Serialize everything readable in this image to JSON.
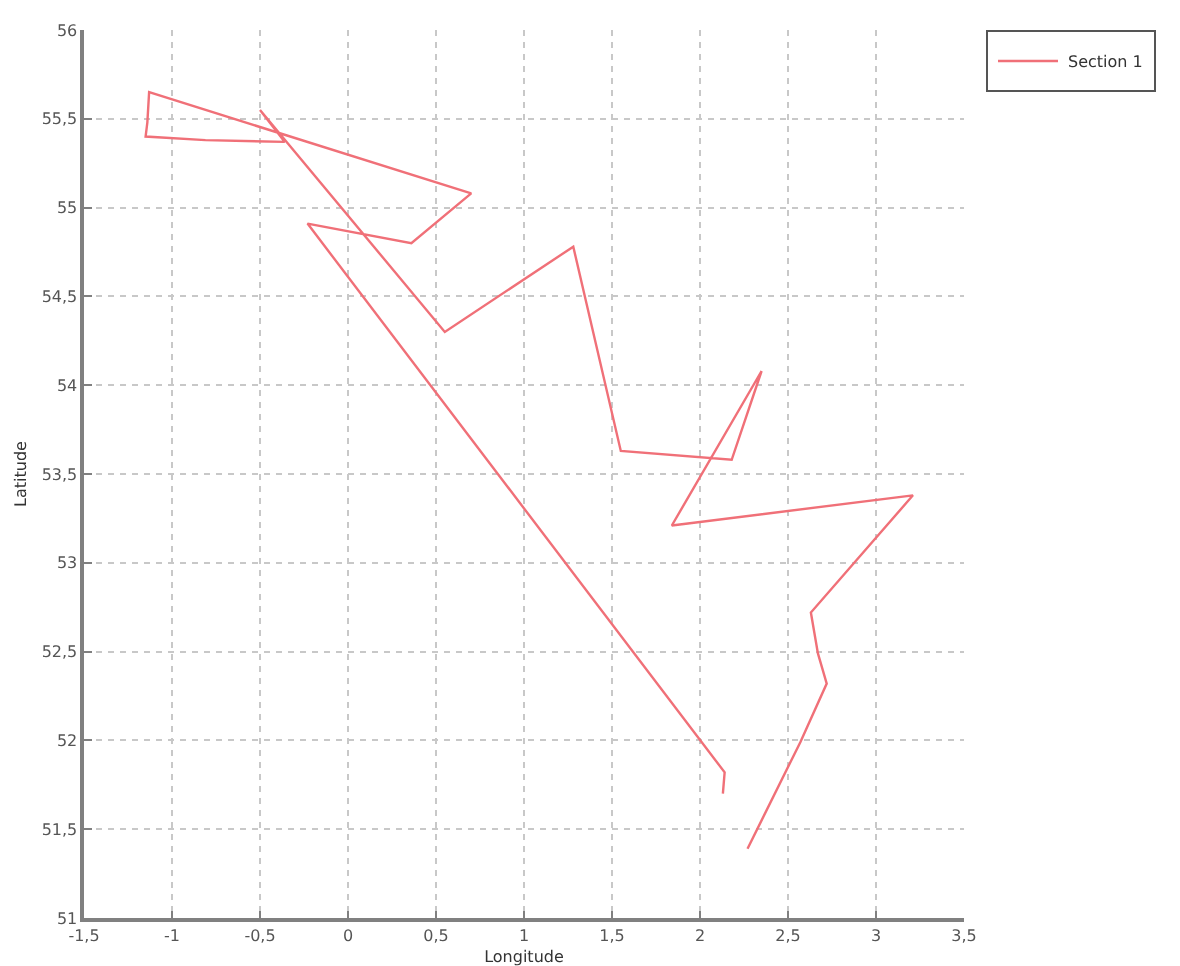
{
  "chart_data": {
    "type": "line",
    "xlabel": "Longitude",
    "ylabel": "Latitude",
    "series": [
      {
        "name": "Section 1",
        "color": "#f07078",
        "x": [
          2.27,
          2.57,
          2.72,
          2.67,
          2.63,
          3.21,
          1.84,
          2.35,
          2.18,
          1.55,
          1.28,
          0.55,
          -0.5,
          -0.36,
          -0.81,
          -1.15,
          -1.14,
          -1.13,
          0.7,
          0.36,
          -0.23,
          2.14,
          2.13
        ],
        "values": [
          51.39,
          51.99,
          52.32,
          52.49,
          52.72,
          53.38,
          53.21,
          54.08,
          53.58,
          53.63,
          54.78,
          54.3,
          55.55,
          55.37,
          55.38,
          55.4,
          55.48,
          55.65,
          55.08,
          54.8,
          54.91,
          51.82,
          51.7
        ]
      }
    ],
    "xlim": [
      -1.5,
      3.5
    ],
    "ylim": [
      51,
      56
    ],
    "xticks": [
      {
        "value": -1.5,
        "label": "-1,5"
      },
      -1,
      {
        "value": -0.5,
        "label": "-0,5"
      },
      0,
      {
        "value": 0.5,
        "label": "0,5"
      },
      1,
      {
        "value": 1.5,
        "label": "1,5"
      },
      2,
      {
        "value": 2.5,
        "label": "2,5"
      },
      3,
      {
        "value": 3.5,
        "label": "3,5"
      }
    ],
    "yticks": [
      51,
      {
        "value": 51.5,
        "label": "51,5"
      },
      52,
      {
        "value": 52.5,
        "label": "52,5"
      },
      53,
      {
        "value": 53.5,
        "label": "53,5"
      },
      54,
      {
        "value": 54.5,
        "label": "54,5"
      },
      55,
      {
        "value": 55.5,
        "label": "55,5"
      },
      56
    ],
    "grid": true,
    "legend": "top right",
    "marker": "none",
    "line_style": "solid"
  }
}
